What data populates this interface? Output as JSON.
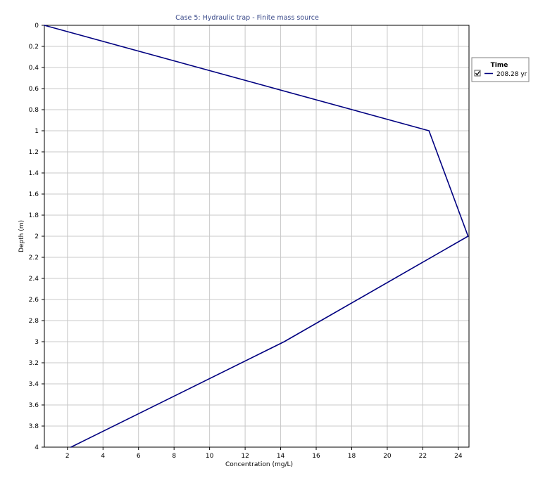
{
  "chart_data": {
    "type": "line",
    "title": "Case 5: Hydraulic trap - Finite mass source",
    "xlabel": "Concentration (mg/L)",
    "ylabel": "Depth (m)",
    "xlim": [
      0.7,
      24.6
    ],
    "ylim": [
      0,
      4
    ],
    "y_inverted": true,
    "x_ticks": [
      "2",
      "4",
      "6",
      "8",
      "10",
      "12",
      "14",
      "16",
      "18",
      "20",
      "22",
      "24"
    ],
    "y_ticks": [
      "0",
      "0.2",
      "0.4",
      "0.6",
      "0.8",
      "1",
      "1.2",
      "1.4",
      "1.6",
      "1.8",
      "2",
      "2.2",
      "2.4",
      "2.6",
      "2.8",
      "3",
      "3.2",
      "3.4",
      "3.6",
      "3.8",
      "4"
    ],
    "grid": true,
    "legend": {
      "title": "Time",
      "placement": "right-top",
      "checked": true
    },
    "series": [
      {
        "name": "208.28 yr",
        "color": "#000080",
        "points": [
          {
            "x": 0.7,
            "y": 0
          },
          {
            "x": 22.35,
            "y": 1
          },
          {
            "x": 24.55,
            "y": 2
          },
          {
            "x": 14.2,
            "y": 3
          },
          {
            "x": 2.2,
            "y": 4
          }
        ]
      }
    ]
  },
  "colors": {
    "title": "#3a4a8a",
    "grid": "#c8c8c8",
    "axis": "#000000",
    "series": "#000080"
  }
}
